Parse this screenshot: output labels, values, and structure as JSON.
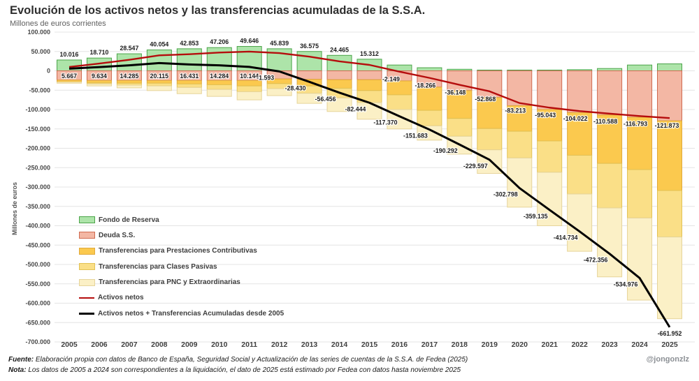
{
  "header": {
    "title": "Evolución de los activos netos y las transferencias acumuladas de la S.S.A.",
    "subtitle": "Millones de euros corrientes"
  },
  "watermark": "@jongonzlz",
  "footer": {
    "fuente_label": "Fuente:",
    "fuente_text": " Elaboración propia con datos de Banco de España, Seguridad Social y Actualización de las series de cuentas de la S.S.A. de Fedea (2025)",
    "nota_label": "Nota:",
    "nota_text": " Los datos de 2005 a 2024 son correspondientes a la liquidación, el dato de 2025 está estimado por Fedea con datos hasta noviembre 2025"
  },
  "chart_data": {
    "type": "bar",
    "subtype": "stacked bars with two overlay line series",
    "title": "Evolución de los activos netos y las transferencias acumuladas de la S.S.A.",
    "xlabel": "",
    "ylabel": "Millones de euros",
    "ylim": [
      -700000,
      100000
    ],
    "grid": true,
    "legend_position": "left-middle",
    "ytick_labels": [
      "100.000",
      "50.000",
      "0",
      "-50.000",
      "-100.000",
      "-150.000",
      "-200.000",
      "-250.000",
      "-300.000",
      "-350.000",
      "-400.000",
      "-450.000",
      "-500.000",
      "-550.000",
      "-600.000",
      "-650.000",
      "-700.000"
    ],
    "categories": [
      "2005",
      "2006",
      "2007",
      "2008",
      "2009",
      "2010",
      "2011",
      "2012",
      "2013",
      "2014",
      "2015",
      "2016",
      "2017",
      "2018",
      "2019",
      "2020",
      "2021",
      "2022",
      "2023",
      "2024",
      "2025"
    ],
    "series": [
      {
        "name": "Fondo de Reserva",
        "type": "bar",
        "fill": "#ade4a9",
        "border": "#4ba449",
        "values": [
          28000,
          33000,
          44000,
          54000,
          57000,
          60000,
          63000,
          57000,
          50000,
          40000,
          30000,
          15000,
          8000,
          4000,
          2000,
          2000,
          2000,
          3000,
          6000,
          15000,
          18000
        ]
      },
      {
        "name": "Deuda S.S.",
        "type": "bar",
        "fill": "#f3b7a4",
        "border": "#cf6a50",
        "values": [
          -24000,
          -25000,
          -25000,
          -25000,
          -25000,
          -25000,
          -25000,
          -21000,
          -22000,
          -23000,
          -23000,
          -26000,
          -42000,
          -51000,
          -69000,
          -90000,
          -100000,
          -108000,
          -114000,
          -120000,
          -129000
        ]
      },
      {
        "name": "Transferencias para Prestaciones Contributivas",
        "type": "bar",
        "fill": "#fbc94e",
        "border": "#e0a93b",
        "values": [
          -5000,
          -6000,
          -7000,
          -7000,
          -9000,
          -11000,
          -14000,
          -12000,
          -17000,
          -22000,
          -28000,
          -36000,
          -60000,
          -72000,
          -80000,
          -66000,
          -81000,
          -110000,
          -125000,
          -135000,
          -180000
        ]
      },
      {
        "name": "Transferencias para Clases Pasivas",
        "type": "bar",
        "fill": "#fadf87",
        "border": "#e2c255",
        "values": [
          0,
          -3000,
          -5000,
          -7000,
          -9000,
          -12000,
          -15000,
          -13000,
          -19000,
          -25000,
          -31000,
          -38000,
          -40000,
          -46000,
          -55000,
          -69000,
          -81000,
          -100000,
          -115000,
          -125000,
          -120000
        ]
      },
      {
        "name": "Transferencias para PNC y Extraordinarias",
        "type": "bar",
        "fill": "#fbf0c6",
        "border": "#e6d49a",
        "values": [
          -3000,
          -5000,
          -7000,
          -12000,
          -16000,
          -18000,
          -21000,
          -18000,
          -26000,
          -35000,
          -43000,
          -50000,
          -37000,
          -46000,
          -61000,
          -127000,
          -138000,
          -148000,
          -178000,
          -212000,
          -211000
        ]
      },
      {
        "name": "Activos netos",
        "type": "line",
        "color": "#b50d0d",
        "values": [
          10016,
          18710,
          28547,
          40054,
          42853,
          47206,
          49646,
          45839,
          36575,
          24465,
          15312,
          -2149,
          -18266,
          -36148,
          -52868,
          -83213,
          -95043,
          -104022,
          -110588,
          -116793,
          -121873
        ],
        "labels": [
          "10.016",
          "18.710",
          "28.547",
          "40.054",
          "42.853",
          "47.206",
          "49.646",
          "45.839",
          "36.575",
          "24.465",
          "15.312",
          "-2.149",
          "-18.266",
          "-36.148",
          "-52.868",
          "-83.213",
          "-95.043",
          "-104.022",
          "-110.588",
          "-116.793",
          "-121.873"
        ]
      },
      {
        "name": "Activos netos + Transferencias Acumuladas desde 2005",
        "type": "line",
        "color": "#000000",
        "values": [
          5667,
          9634,
          14285,
          20115,
          16431,
          14284,
          10144,
          -1593,
          -28430,
          -56456,
          -82444,
          -117370,
          -151683,
          -190292,
          -229597,
          -302798,
          -359135,
          -414734,
          -472356,
          -534976,
          -661952
        ],
        "labels": [
          "5.667",
          "9.634",
          "14.285",
          "20.115",
          "16.431",
          "14.284",
          "10.144",
          "-1.593",
          "-28.430",
          "-56.456",
          "-82.444",
          "-117.370",
          "-151.683",
          "-190.292",
          "-229.597",
          "-302.798",
          "-359.135",
          "-414.734",
          "-472.356",
          "-534.976",
          "-661.952"
        ]
      }
    ]
  }
}
